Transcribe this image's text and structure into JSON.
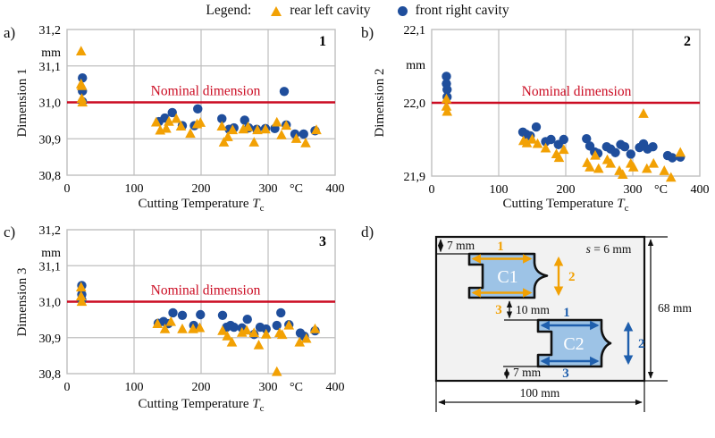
{
  "legend": {
    "title": "Legend:",
    "items": [
      {
        "label": "rear left cavity",
        "marker": "triangle",
        "color": "#F2A104"
      },
      {
        "label": "front right cavity",
        "marker": "circle",
        "color": "#1F4E9C"
      }
    ]
  },
  "colors": {
    "nominal_line": "#CB0B22",
    "grid": "#BFBFBF",
    "marker_orange": "#F2A104",
    "marker_blue": "#1F4E9C",
    "cavity_fill": "#9DC3E6",
    "plate_fill": "#F2F2F2"
  },
  "chart_data": [
    {
      "type": "scatter",
      "panel_label": "a)",
      "corner_number": "1",
      "ylabel": "Dimension 1",
      "unit": "mm",
      "xlabel": "Cutting Temperature",
      "xlabel_var": "T",
      "xlabel_sub": "c",
      "x_unit": "°C",
      "xlim": [
        0,
        400
      ],
      "ylim": [
        30.8,
        31.2
      ],
      "xticks": [
        0,
        100,
        200,
        300,
        400
      ],
      "xtick_labels": [
        "0",
        "100",
        "200",
        "300",
        "400"
      ],
      "yticks": [
        31.2,
        31.1,
        31.0,
        30.9,
        30.8
      ],
      "ytick_labels": [
        "31,2",
        "31,1",
        "31,0",
        "30,9",
        "30,8"
      ],
      "nominal_value": 31.0,
      "nominal_label": "Nominal dimension",
      "grid": true,
      "series": [
        {
          "name": "rear left cavity",
          "marker": "triangle",
          "color": "#F2A104",
          "points": [
            [
              21,
              31.14
            ],
            [
              21,
              31.05
            ],
            [
              22,
              31.045
            ],
            [
              22,
              31.01
            ],
            [
              23,
              31.0
            ],
            [
              133,
              30.945
            ],
            [
              139,
              30.923
            ],
            [
              148,
              30.928
            ],
            [
              152,
              30.947
            ],
            [
              163,
              30.955
            ],
            [
              170,
              30.934
            ],
            [
              184,
              30.914
            ],
            [
              194,
              30.94
            ],
            [
              199,
              30.944
            ],
            [
              231,
              30.934
            ],
            [
              234,
              30.89
            ],
            [
              240,
              30.905
            ],
            [
              247,
              30.924
            ],
            [
              263,
              30.926
            ],
            [
              270,
              30.932
            ],
            [
              279,
              30.89
            ],
            [
              284,
              30.924
            ],
            [
              296,
              30.926
            ],
            [
              313,
              30.945
            ],
            [
              320,
              30.91
            ],
            [
              327,
              30.936
            ],
            [
              342,
              30.9
            ],
            [
              356,
              30.888
            ],
            [
              372,
              30.924
            ]
          ]
        },
        {
          "name": "front right cavity",
          "marker": "circle",
          "color": "#1F4E9C",
          "points": [
            [
              23,
              31.067
            ],
            [
              23,
              31.031
            ],
            [
              23,
              31.002
            ],
            [
              137,
              30.947
            ],
            [
              146,
              30.957
            ],
            [
              157,
              30.972
            ],
            [
              172,
              30.936
            ],
            [
              190,
              30.936
            ],
            [
              195,
              30.982
            ],
            [
              231,
              30.955
            ],
            [
              242,
              30.926
            ],
            [
              249,
              30.93
            ],
            [
              265,
              30.951
            ],
            [
              271,
              30.93
            ],
            [
              283,
              30.926
            ],
            [
              296,
              30.928
            ],
            [
              310,
              30.928
            ],
            [
              324,
              31.03
            ],
            [
              327,
              30.938
            ],
            [
              340,
              30.913
            ],
            [
              353,
              30.913
            ],
            [
              370,
              30.922
            ]
          ]
        }
      ]
    },
    {
      "type": "scatter",
      "panel_label": "b)",
      "corner_number": "2",
      "ylabel": "Dimension 2",
      "unit": "mm",
      "xlabel": "Cutting Temperature",
      "xlabel_var": "T",
      "xlabel_sub": "c",
      "x_unit": "°C",
      "xlim": [
        0,
        400
      ],
      "ylim": [
        21.9,
        22.1
      ],
      "xticks": [
        0,
        100,
        200,
        300,
        400
      ],
      "xtick_labels": [
        "0",
        "100",
        "200",
        "300",
        "400"
      ],
      "yticks": [
        22.1,
        22.0,
        21.9
      ],
      "ytick_labels": [
        "22,1",
        "22,0",
        "21,9"
      ],
      "nominal_value": 22.0,
      "nominal_label": "Nominal dimension",
      "grid": true,
      "series": [
        {
          "name": "rear left cavity",
          "marker": "triangle",
          "color": "#F2A104",
          "points": [
            [
              22,
              22.005
            ],
            [
              22,
              21.995
            ],
            [
              23,
              21.988
            ],
            [
              137,
              21.948
            ],
            [
              142,
              21.945
            ],
            [
              150,
              21.95
            ],
            [
              158,
              21.944
            ],
            [
              170,
              21.938
            ],
            [
              186,
              21.93
            ],
            [
              190,
              21.925
            ],
            [
              197,
              21.936
            ],
            [
              232,
              21.918
            ],
            [
              236,
              21.912
            ],
            [
              244,
              21.928
            ],
            [
              249,
              21.91
            ],
            [
              262,
              21.922
            ],
            [
              267,
              21.917
            ],
            [
              280,
              21.907
            ],
            [
              285,
              21.902
            ],
            [
              297,
              21.917
            ],
            [
              301,
              21.912
            ],
            [
              316,
              21.985
            ],
            [
              321,
              21.91
            ],
            [
              331,
              21.917
            ],
            [
              347,
              21.907
            ],
            [
              357,
              21.898
            ],
            [
              371,
              21.932
            ]
          ]
        },
        {
          "name": "front right cavity",
          "marker": "circle",
          "color": "#1F4E9C",
          "points": [
            [
              22,
              22.036
            ],
            [
              22,
              22.026
            ],
            [
              23,
              22.018
            ],
            [
              23,
              22.008
            ],
            [
              136,
              21.96
            ],
            [
              141,
              21.957
            ],
            [
              147,
              21.955
            ],
            [
              156,
              21.967
            ],
            [
              170,
              21.947
            ],
            [
              178,
              21.95
            ],
            [
              189,
              21.943
            ],
            [
              197,
              21.95
            ],
            [
              231,
              21.951
            ],
            [
              236,
              21.941
            ],
            [
              243,
              21.933
            ],
            [
              248,
              21.931
            ],
            [
              261,
              21.94
            ],
            [
              267,
              21.937
            ],
            [
              274,
              21.932
            ],
            [
              282,
              21.943
            ],
            [
              288,
              21.94
            ],
            [
              297,
              21.93
            ],
            [
              310,
              21.939
            ],
            [
              316,
              21.944
            ],
            [
              322,
              21.937
            ],
            [
              330,
              21.94
            ],
            [
              352,
              21.928
            ],
            [
              359,
              21.925
            ],
            [
              371,
              21.926
            ]
          ]
        }
      ]
    },
    {
      "type": "scatter",
      "panel_label": "c)",
      "corner_number": "3",
      "ylabel": "Dimension 3",
      "unit": "mm",
      "xlabel": "Cutting Temperature",
      "xlabel_var": "T",
      "xlabel_sub": "c",
      "x_unit": "°C",
      "xlim": [
        0,
        400
      ],
      "ylim": [
        30.8,
        31.2
      ],
      "xticks": [
        0,
        100,
        200,
        300,
        400
      ],
      "xtick_labels": [
        "0",
        "100",
        "200",
        "300",
        "400"
      ],
      "yticks": [
        31.2,
        31.1,
        31.0,
        30.9,
        30.8
      ],
      "ytick_labels": [
        "31,2",
        "31,1",
        "31,0",
        "30,9",
        "30,8"
      ],
      "nominal_value": 31.0,
      "nominal_label": "Nominal dimension",
      "grid": true,
      "series": [
        {
          "name": "rear left cavity",
          "marker": "triangle",
          "color": "#F2A104",
          "points": [
            [
              21,
              31.04
            ],
            [
              21,
              31.015
            ],
            [
              22,
              31.0
            ],
            [
              135,
              30.938
            ],
            [
              146,
              30.924
            ],
            [
              155,
              30.944
            ],
            [
              172,
              30.924
            ],
            [
              188,
              30.924
            ],
            [
              198,
              30.927
            ],
            [
              232,
              30.919
            ],
            [
              239,
              30.904
            ],
            [
              246,
              30.887
            ],
            [
              261,
              30.914
            ],
            [
              268,
              30.92
            ],
            [
              279,
              30.913
            ],
            [
              286,
              30.879
            ],
            [
              297,
              30.909
            ],
            [
              313,
              30.805
            ],
            [
              317,
              30.913
            ],
            [
              321,
              30.908
            ],
            [
              331,
              30.934
            ],
            [
              347,
              30.887
            ],
            [
              357,
              30.897
            ],
            [
              370,
              30.924
            ]
          ]
        },
        {
          "name": "front right cavity",
          "marker": "circle",
          "color": "#1F4E9C",
          "points": [
            [
              22,
              31.045
            ],
            [
              22,
              31.02
            ],
            [
              22,
              31.005
            ],
            [
              136,
              30.94
            ],
            [
              144,
              30.945
            ],
            [
              151,
              30.939
            ],
            [
              158,
              30.969
            ],
            [
              172,
              30.962
            ],
            [
              189,
              30.934
            ],
            [
              199,
              30.964
            ],
            [
              232,
              30.962
            ],
            [
              238,
              30.929
            ],
            [
              244,
              30.934
            ],
            [
              249,
              30.929
            ],
            [
              261,
              30.927
            ],
            [
              269,
              30.951
            ],
            [
              279,
              30.909
            ],
            [
              288,
              30.929
            ],
            [
              297,
              30.924
            ],
            [
              313,
              30.934
            ],
            [
              319,
              30.969
            ],
            [
              331,
              30.936
            ],
            [
              348,
              30.913
            ],
            [
              354,
              30.904
            ],
            [
              370,
              30.919
            ]
          ]
        }
      ]
    }
  ],
  "diagram": {
    "panel_label": "d)",
    "sheet_thickness_var": "s",
    "sheet_thickness_rest": " = 6 mm",
    "dim_top": "7 mm",
    "dim_gap": "10 mm",
    "dim_bottom": "7 mm",
    "dim_height": "68 mm",
    "dim_width": "100 mm",
    "cavity1": {
      "name": "C1",
      "color": "#F2A104",
      "labels": {
        "d1": "1",
        "d2": "2",
        "d3": "3"
      }
    },
    "cavity2": {
      "name": "C2",
      "color": "#1F5FAD",
      "labels": {
        "d1": "1",
        "d2": "2",
        "d3": "3"
      }
    }
  }
}
